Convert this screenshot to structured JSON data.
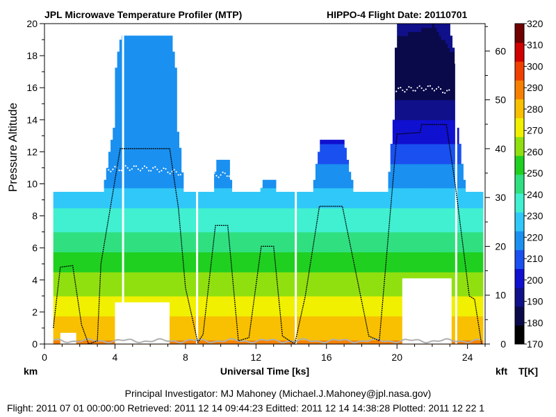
{
  "header": {
    "left_title": "JPL Microwave Temperature Profiler (MTP)",
    "right_title": "HIPPO-4  Flight Date: 20110701"
  },
  "chart_data": {
    "type": "heatmap",
    "title": "JPL Microwave Temperature Profiler (MTP)",
    "xlabel": "Universal Time [ks]",
    "ylabel": "Pressure Altitude",
    "xlim": [
      0,
      25
    ],
    "ylim": [
      0,
      20
    ],
    "y2lim_kft": [
      0,
      65.6
    ],
    "x_ticks": [
      0,
      4,
      8,
      12,
      16,
      20,
      24
    ],
    "y_ticks": [
      0,
      2,
      4,
      6,
      8,
      10,
      12,
      14,
      16,
      18,
      20
    ],
    "y2_ticks": [
      0,
      10,
      20,
      30,
      40,
      50,
      60
    ],
    "left_unit": "km",
    "right_unit": "kft",
    "colorbar_label": "T[K]",
    "colorbar_ticks": [
      170,
      180,
      190,
      200,
      210,
      220,
      230,
      240,
      250,
      260,
      270,
      280,
      290,
      300,
      310,
      320
    ],
    "colorbar_colors": [
      "#000000",
      "#0a0a4a",
      "#10108a",
      "#1010d0",
      "#1a50f0",
      "#1a90f0",
      "#30c8f8",
      "#40f0d0",
      "#30e080",
      "#20d020",
      "#90e010",
      "#f0f000",
      "#f8c000",
      "#f88000",
      "#f04000",
      "#d00000",
      "#700000"
    ],
    "surface_temp_K": 286,
    "lapse_rate_K_per_km": 6.5,
    "flight_altitude_km": [
      [
        0.5,
        1.0
      ],
      [
        0.9,
        4.8
      ],
      [
        1.6,
        4.9
      ],
      [
        2.1,
        1.2
      ],
      [
        2.5,
        0.0
      ],
      [
        3.0,
        0.2
      ],
      [
        3.2,
        5.0
      ],
      [
        4.3,
        12.2
      ],
      [
        7.1,
        12.2
      ],
      [
        7.6,
        8.5
      ],
      [
        8.0,
        3.5
      ],
      [
        8.7,
        0.1
      ],
      [
        9.0,
        0.6
      ],
      [
        9.7,
        7.4
      ],
      [
        10.4,
        7.4
      ],
      [
        11.0,
        0.2
      ],
      [
        11.6,
        0.4
      ],
      [
        12.3,
        6.1
      ],
      [
        13.0,
        6.1
      ],
      [
        13.5,
        0.5
      ],
      [
        14.2,
        0.0
      ],
      [
        14.8,
        3.0
      ],
      [
        15.6,
        8.6
      ],
      [
        16.9,
        8.6
      ],
      [
        18.4,
        0.5
      ],
      [
        19.0,
        0.2
      ],
      [
        20.0,
        13.1
      ],
      [
        21.3,
        13.2
      ],
      [
        21.4,
        13.7
      ],
      [
        22.8,
        13.7
      ],
      [
        23.3,
        10.0
      ],
      [
        24.1,
        3.0
      ],
      [
        24.4,
        2.8
      ],
      [
        24.8,
        0.0
      ]
    ],
    "tropopause_km": [
      [
        1.0,
        10.8
      ],
      [
        2.0,
        10.8
      ],
      [
        3.5,
        10.9
      ],
      [
        5.0,
        11.0
      ],
      [
        6.5,
        10.9
      ],
      [
        7.5,
        10.7
      ],
      [
        9.0,
        10.5
      ],
      [
        10.5,
        10.6
      ],
      [
        11.5,
        10.9
      ],
      [
        12.5,
        11.1
      ],
      [
        13.2,
        11.0
      ],
      [
        15.5,
        15.3
      ],
      [
        16.5,
        15.6
      ],
      [
        20.5,
        15.9
      ],
      [
        22.0,
        16.0
      ],
      [
        23.0,
        15.7
      ]
    ]
  },
  "footer": {
    "pi_line": "Principal Investigator: MJ Mahoney (Michael.J.Mahoney@jpl.nasa.gov)",
    "dates_line": "Flight: 2011 07 01 00:00:00   Retrieved: 2011 12 14 09:44:23   Editted: 2011 12 14 14:38:28   Plotted: 2011 12 22 1"
  }
}
